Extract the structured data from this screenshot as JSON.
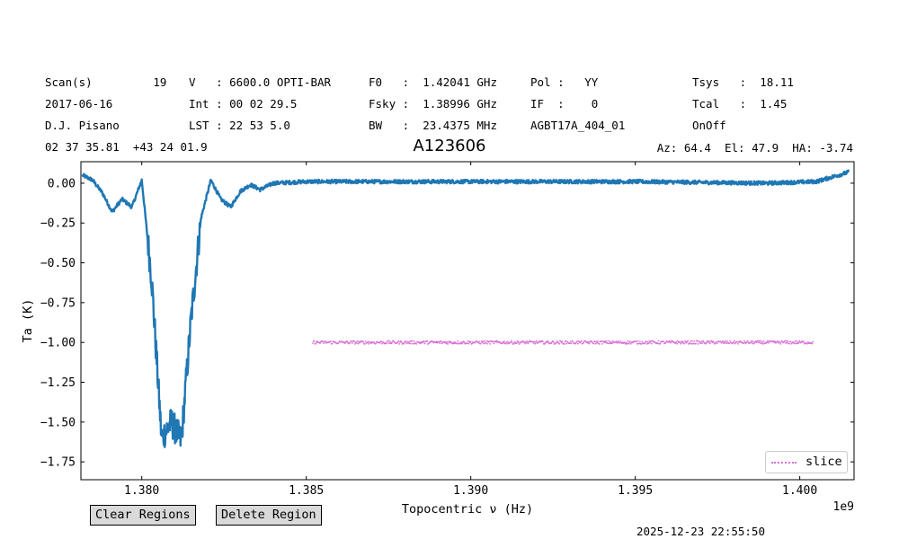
{
  "header": {
    "rows": [
      [
        "Scan(s)         19",
        "V   : 6600.0 OPTI-BAR",
        "F0   :  1.42041 GHz",
        "Pol :   YY",
        "Tsys   :  18.11"
      ],
      [
        "2017-06-16",
        "Int : 00 02 29.5",
        "Fsky :  1.38996 GHz",
        "IF  :    0",
        "Tcal   :  1.45"
      ],
      [
        "D.J. Pisano",
        "LST : 22 53 5.0",
        "BW   :  23.4375 MHz",
        "AGBT17A_404_01",
        "OnOff"
      ]
    ],
    "coords": "02 37 35.81  +43 24 01.9",
    "title": "A123606",
    "azel": "Az: 64.4  El: 47.9  HA: -3.74"
  },
  "buttons": {
    "clear": "Clear Regions",
    "delete": "Delete Region"
  },
  "timestamp": "2025-12-23 22:55:50",
  "chart_data": {
    "type": "line",
    "xlabel": "Topocentric ν (Hz)",
    "ylabel": "Ta (K)",
    "x_offset_label": "1e9",
    "xlim": [
      1.37815,
      1.40165
    ],
    "ylim": [
      -1.862,
      0.135
    ],
    "x_scale_note": "x values in GHz (axis multiplier 1e9)",
    "xticks": [
      1.38,
      1.385,
      1.39,
      1.395,
      1.4
    ],
    "xtick_labels": [
      "1.380",
      "1.385",
      "1.390",
      "1.395",
      "1.400"
    ],
    "yticks": [
      0.0,
      -0.25,
      -0.5,
      -0.75,
      -1.0,
      -1.25,
      -1.5,
      -1.75
    ],
    "ytick_labels": [
      "0.00",
      "−0.25",
      "−0.50",
      "−0.75",
      "−1.00",
      "−1.25",
      "−1.50",
      "−1.75"
    ],
    "series": [
      {
        "color": "#1f77b4",
        "style": "solid",
        "noise": 0.012,
        "x": [
          1.3782,
          1.3785,
          1.3788,
          1.3791,
          1.3794,
          1.3797,
          1.38,
          1.3803,
          1.3806,
          1.3809,
          1.3812,
          1.3815,
          1.3818,
          1.3821,
          1.3824,
          1.3827,
          1.383,
          1.3833,
          1.3836,
          1.384,
          1.385,
          1.386,
          1.39,
          1.395,
          1.399,
          1.4005,
          1.4015
        ],
        "y": [
          0.05,
          0.02,
          -0.06,
          -0.18,
          -0.1,
          -0.15,
          0.02,
          -0.6,
          -1.6,
          -1.5,
          -1.62,
          -0.85,
          -0.22,
          0.02,
          -0.1,
          -0.15,
          -0.05,
          -0.01,
          -0.04,
          0.0,
          0.01,
          0.01,
          0.01,
          0.01,
          0.0,
          0.01,
          0.07
        ]
      },
      {
        "name": "slice",
        "color": "#da70d6",
        "style": "dotted",
        "noise": 0.01,
        "x": [
          1.3852,
          1.4004
        ],
        "y": [
          -1.0,
          -1.0
        ]
      }
    ],
    "legend": "lower-right"
  }
}
